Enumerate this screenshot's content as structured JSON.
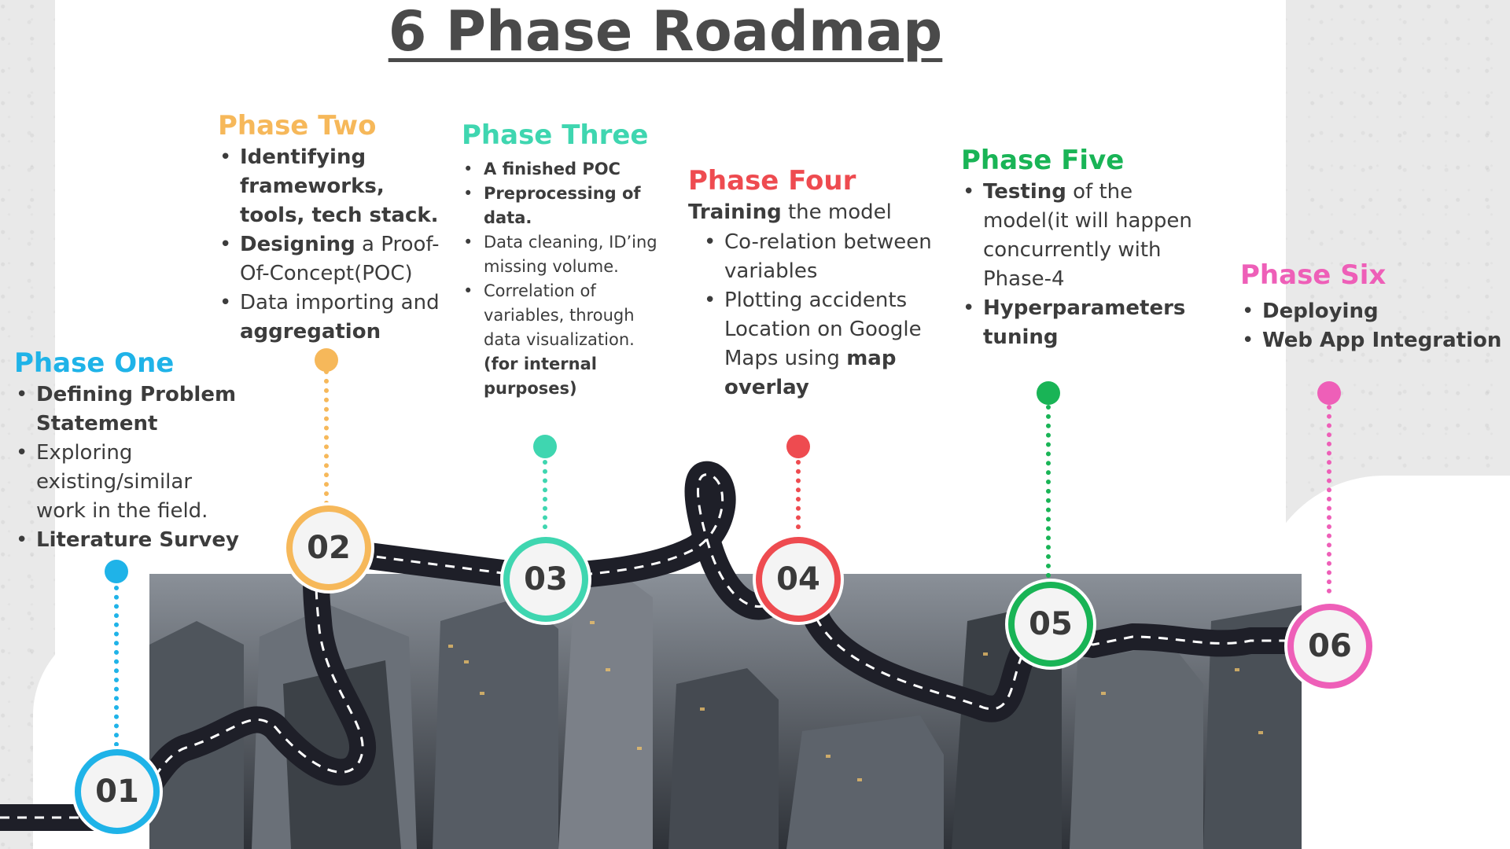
{
  "title": "6 Phase Roadmap",
  "colors": {
    "one": "#1fb3e8",
    "two": "#f6b85a",
    "three": "#3fd6b0",
    "four": "#ee4b50",
    "five": "#19b456",
    "six": "#ee5fb8"
  },
  "phases": [
    {
      "number": "01",
      "title": "Phase One",
      "items": [
        [
          {
            "t": "Defining Problem Statement",
            "b": true
          }
        ],
        [
          {
            "t": "Exploring existing/similar work in the field.",
            "b": false
          }
        ],
        [
          {
            "t": "Literature Survey",
            "b": true
          }
        ]
      ]
    },
    {
      "number": "02",
      "title": "Phase Two",
      "items": [
        [
          {
            "t": "Identifying frameworks, tools, tech stack.",
            "b": true
          }
        ],
        [
          {
            "t": "Designing",
            "b": true
          },
          {
            "t": " a Proof-Of-Concept(POC)",
            "b": false
          }
        ],
        [
          {
            "t": "Data importing and ",
            "b": false
          },
          {
            "t": "aggregation",
            "b": true
          }
        ]
      ]
    },
    {
      "number": "03",
      "title": "Phase Three",
      "items": [
        [
          {
            "t": "A finished POC",
            "b": true
          }
        ],
        [
          {
            "t": "Preprocessing of data.",
            "b": true
          }
        ],
        [
          {
            "t": "Data cleaning, ID’ing missing volume.",
            "b": false
          }
        ],
        [
          {
            "t": "Correlation of variables, through data visualization. ",
            "b": false
          },
          {
            "t": "(for internal purposes)",
            "b": true
          }
        ]
      ]
    },
    {
      "number": "04",
      "title": "Phase Four",
      "subtitle_bold": "Training",
      "subtitle_rest": " the model",
      "items": [
        [
          {
            "t": "Co-relation between variables",
            "b": false
          }
        ],
        [
          {
            "t": "Plotting accidents Location on Google Maps using ",
            "b": false
          },
          {
            "t": "map overlay",
            "b": true
          }
        ]
      ]
    },
    {
      "number": "05",
      "title": "Phase Five",
      "items": [
        [
          {
            "t": "Testing",
            "b": true
          },
          {
            "t": " of the model(it will happen concurrently with Phase-4",
            "b": false
          }
        ],
        [
          {
            "t": "Hyperparameters tuning",
            "b": true
          }
        ]
      ]
    },
    {
      "number": "06",
      "title": "Phase Six",
      "items": [
        [
          {
            "t": "Deploying",
            "b": true
          }
        ],
        [
          {
            "t": "Web App Integration",
            "b": true
          }
        ]
      ]
    }
  ]
}
